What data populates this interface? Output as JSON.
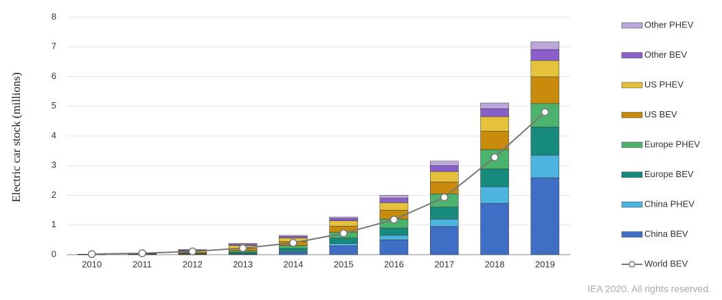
{
  "chart_data": {
    "type": "bar",
    "stacked": true,
    "y_label": "Electric car stock (millions)",
    "footer": "IEA 2020. All rights reserved.",
    "categories": [
      "2010",
      "2011",
      "2012",
      "2013",
      "2014",
      "2015",
      "2016",
      "2017",
      "2018",
      "2019"
    ],
    "ylim": [
      0,
      8
    ],
    "yticks": [
      0,
      1,
      2,
      3,
      4,
      5,
      6,
      7,
      8
    ],
    "grid": true,
    "legend": "right",
    "series": [
      {
        "name": "China BEV",
        "color": "#3f6fc4",
        "values": [
          0.002,
          0.005,
          0.01,
          0.02,
          0.08,
          0.3,
          0.5,
          0.95,
          1.73,
          2.59
        ]
      },
      {
        "name": "China PHEV",
        "color": "#4cb4de",
        "values": [
          0,
          0.002,
          0.005,
          0.01,
          0.03,
          0.08,
          0.15,
          0.25,
          0.56,
          0.76
        ]
      },
      {
        "name": "Europe BEV",
        "color": "#178a7e",
        "values": [
          0.002,
          0.01,
          0.02,
          0.05,
          0.1,
          0.18,
          0.25,
          0.4,
          0.6,
          0.95
        ]
      },
      {
        "name": "Europe PHEV",
        "color": "#4cb36c",
        "values": [
          0,
          0.002,
          0.01,
          0.05,
          0.1,
          0.2,
          0.3,
          0.45,
          0.65,
          0.79
        ]
      },
      {
        "name": "US BEV",
        "color": "#c98b0c",
        "values": [
          0.002,
          0.01,
          0.03,
          0.08,
          0.13,
          0.2,
          0.3,
          0.4,
          0.62,
          0.9
        ]
      },
      {
        "name": "US PHEV",
        "color": "#e6c23a",
        "values": [
          0,
          0.01,
          0.05,
          0.1,
          0.12,
          0.18,
          0.25,
          0.35,
          0.49,
          0.55
        ]
      },
      {
        "name": "Other BEV",
        "color": "#8b5fc9",
        "values": [
          0.01,
          0.01,
          0.03,
          0.04,
          0.05,
          0.08,
          0.15,
          0.2,
          0.27,
          0.37
        ]
      },
      {
        "name": "Other PHEV",
        "color": "#bba8da",
        "values": [
          0.002,
          0.005,
          0.02,
          0.03,
          0.04,
          0.05,
          0.1,
          0.15,
          0.19,
          0.26
        ]
      },
      {
        "name": "World BEV",
        "type": "line",
        "color": "#777777",
        "values": [
          0.02,
          0.05,
          0.11,
          0.22,
          0.4,
          0.72,
          1.18,
          1.93,
          3.28,
          4.8
        ]
      }
    ]
  }
}
